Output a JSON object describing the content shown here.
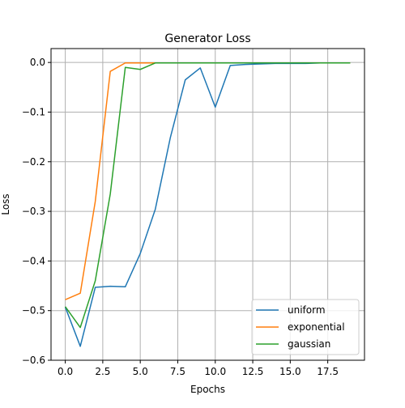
{
  "chart_data": {
    "type": "line",
    "title": "Generator Loss",
    "xlabel": "Epochs",
    "ylabel": "Loss",
    "xlim": [
      -0.95,
      19.95
    ],
    "ylim": [
      -0.6,
      0.028
    ],
    "grid": true,
    "legend_position": "lower right",
    "x_ticks": [
      0.0,
      2.5,
      5.0,
      7.5,
      10.0,
      12.5,
      15.0,
      17.5
    ],
    "x_tick_labels": [
      "0.0",
      "2.5",
      "5.0",
      "7.5",
      "10.0",
      "12.5",
      "15.0",
      "17.5"
    ],
    "y_ticks": [
      0.0,
      -0.1,
      -0.2,
      -0.3,
      -0.4,
      -0.5,
      -0.6
    ],
    "y_tick_labels": [
      "0.0",
      "−0.1",
      "−0.2",
      "−0.3",
      "−0.4",
      "−0.5",
      "−0.6"
    ],
    "x": [
      0,
      1,
      2,
      3,
      4,
      5,
      6,
      7,
      8,
      9,
      10,
      11,
      12,
      13,
      14,
      15,
      16,
      17,
      18,
      19
    ],
    "series": [
      {
        "name": "uniform",
        "color": "#1f77b4",
        "values": [
          -0.493,
          -0.572,
          -0.453,
          -0.451,
          -0.452,
          -0.385,
          -0.296,
          -0.152,
          -0.035,
          -0.011,
          -0.09,
          -0.006,
          -0.004,
          -0.003,
          -0.002,
          -0.002,
          -0.002,
          -0.001,
          -0.001,
          -0.001
        ]
      },
      {
        "name": "exponential",
        "color": "#ff7f0e",
        "values": [
          -0.478,
          -0.465,
          -0.28,
          -0.018,
          -0.001,
          -0.001,
          -0.001,
          -0.001,
          -0.001,
          -0.001,
          -0.001,
          -0.001,
          -0.001,
          -0.001,
          -0.001,
          -0.001,
          -0.001,
          -0.001,
          -0.001,
          -0.001
        ]
      },
      {
        "name": "gaussian",
        "color": "#2ca02c",
        "values": [
          -0.492,
          -0.534,
          -0.44,
          -0.265,
          -0.01,
          -0.014,
          -0.001,
          -0.001,
          -0.001,
          -0.001,
          -0.001,
          -0.001,
          -0.001,
          -0.001,
          -0.001,
          -0.001,
          -0.001,
          -0.001,
          -0.001,
          -0.001
        ]
      }
    ]
  }
}
